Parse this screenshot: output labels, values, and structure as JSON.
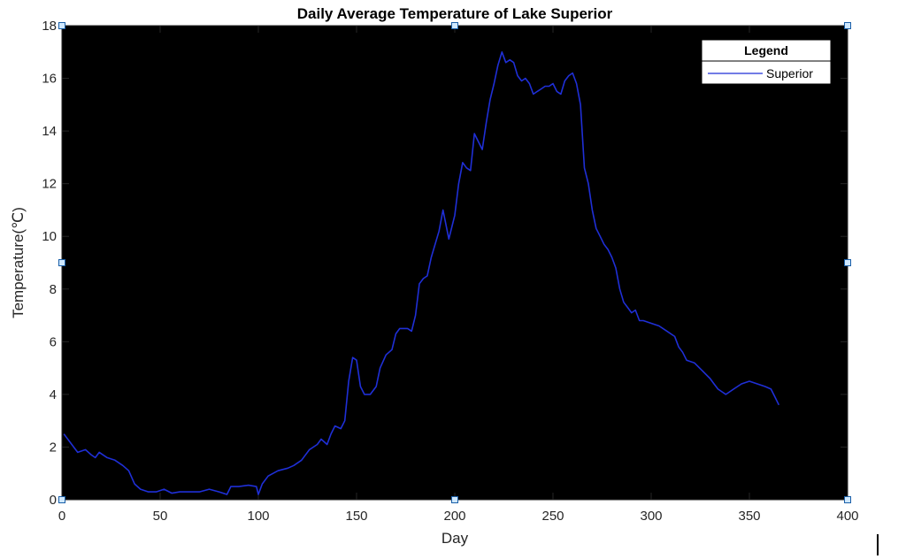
{
  "chart_data": {
    "type": "line",
    "title": "Daily Average Temperature of Lake Superior",
    "xlabel": "Day",
    "ylabel": "Temperature(℃)",
    "xlim": [
      0,
      400
    ],
    "ylim": [
      0,
      18
    ],
    "xticks": [
      0,
      50,
      100,
      150,
      200,
      250,
      300,
      350,
      400
    ],
    "yticks": [
      0,
      2,
      4,
      6,
      8,
      10,
      12,
      14,
      16,
      18
    ],
    "grid": false,
    "legend": {
      "title": "Legend",
      "placement": "top-right"
    },
    "series": [
      {
        "name": "Superior",
        "color": "#1f2fd6",
        "points": [
          [
            1,
            2.5
          ],
          [
            5,
            2.1
          ],
          [
            8,
            1.8
          ],
          [
            12,
            1.9
          ],
          [
            15,
            1.7
          ],
          [
            17,
            1.6
          ],
          [
            19,
            1.8
          ],
          [
            23,
            1.6
          ],
          [
            27,
            1.5
          ],
          [
            31,
            1.3
          ],
          [
            34,
            1.1
          ],
          [
            37,
            0.6
          ],
          [
            40,
            0.4
          ],
          [
            44,
            0.3
          ],
          [
            48,
            0.3
          ],
          [
            52,
            0.4
          ],
          [
            56,
            0.25
          ],
          [
            60,
            0.3
          ],
          [
            65,
            0.3
          ],
          [
            70,
            0.3
          ],
          [
            75,
            0.4
          ],
          [
            80,
            0.3
          ],
          [
            84,
            0.2
          ],
          [
            86,
            0.5
          ],
          [
            90,
            0.5
          ],
          [
            95,
            0.55
          ],
          [
            99,
            0.5
          ],
          [
            100,
            0.2
          ],
          [
            102,
            0.6
          ],
          [
            105,
            0.9
          ],
          [
            110,
            1.1
          ],
          [
            115,
            1.2
          ],
          [
            118,
            1.3
          ],
          [
            122,
            1.5
          ],
          [
            126,
            1.9
          ],
          [
            130,
            2.1
          ],
          [
            132,
            2.3
          ],
          [
            135,
            2.1
          ],
          [
            137,
            2.5
          ],
          [
            139,
            2.8
          ],
          [
            142,
            2.7
          ],
          [
            144,
            3.0
          ],
          [
            146,
            4.5
          ],
          [
            148,
            5.4
          ],
          [
            150,
            5.3
          ],
          [
            152,
            4.3
          ],
          [
            154,
            4.0
          ],
          [
            157,
            4.0
          ],
          [
            160,
            4.3
          ],
          [
            162,
            5.0
          ],
          [
            165,
            5.5
          ],
          [
            168,
            5.7
          ],
          [
            170,
            6.3
          ],
          [
            172,
            6.5
          ],
          [
            176,
            6.5
          ],
          [
            178,
            6.4
          ],
          [
            180,
            7.0
          ],
          [
            182,
            8.2
          ],
          [
            184,
            8.4
          ],
          [
            186,
            8.5
          ],
          [
            188,
            9.2
          ],
          [
            190,
            9.7
          ],
          [
            192,
            10.2
          ],
          [
            194,
            11.0
          ],
          [
            197,
            9.9
          ],
          [
            200,
            10.8
          ],
          [
            202,
            12.0
          ],
          [
            204,
            12.8
          ],
          [
            206,
            12.6
          ],
          [
            208,
            12.5
          ],
          [
            210,
            13.9
          ],
          [
            212,
            13.6
          ],
          [
            214,
            13.3
          ],
          [
            216,
            14.3
          ],
          [
            218,
            15.2
          ],
          [
            220,
            15.8
          ],
          [
            222,
            16.5
          ],
          [
            224,
            17.0
          ],
          [
            226,
            16.6
          ],
          [
            228,
            16.7
          ],
          [
            230,
            16.6
          ],
          [
            232,
            16.1
          ],
          [
            234,
            15.9
          ],
          [
            236,
            16.0
          ],
          [
            238,
            15.8
          ],
          [
            240,
            15.4
          ],
          [
            242,
            15.5
          ],
          [
            244,
            15.6
          ],
          [
            246,
            15.7
          ],
          [
            248,
            15.7
          ],
          [
            250,
            15.8
          ],
          [
            252,
            15.5
          ],
          [
            254,
            15.4
          ],
          [
            256,
            15.9
          ],
          [
            258,
            16.1
          ],
          [
            260,
            16.2
          ],
          [
            262,
            15.8
          ],
          [
            264,
            15.0
          ],
          [
            266,
            12.6
          ],
          [
            268,
            12.0
          ],
          [
            270,
            11.0
          ],
          [
            272,
            10.3
          ],
          [
            274,
            10.0
          ],
          [
            276,
            9.7
          ],
          [
            278,
            9.5
          ],
          [
            280,
            9.2
          ],
          [
            282,
            8.8
          ],
          [
            284,
            8.0
          ],
          [
            286,
            7.5
          ],
          [
            288,
            7.3
          ],
          [
            290,
            7.1
          ],
          [
            292,
            7.2
          ],
          [
            294,
            6.8
          ],
          [
            296,
            6.8
          ],
          [
            300,
            6.7
          ],
          [
            304,
            6.6
          ],
          [
            308,
            6.4
          ],
          [
            312,
            6.2
          ],
          [
            314,
            5.8
          ],
          [
            316,
            5.6
          ],
          [
            318,
            5.3
          ],
          [
            322,
            5.2
          ],
          [
            326,
            4.9
          ],
          [
            330,
            4.6
          ],
          [
            332,
            4.4
          ],
          [
            334,
            4.2
          ],
          [
            336,
            4.1
          ],
          [
            338,
            4.0
          ],
          [
            342,
            4.2
          ],
          [
            346,
            4.4
          ],
          [
            350,
            4.5
          ],
          [
            354,
            4.4
          ],
          [
            358,
            4.3
          ],
          [
            361,
            4.2
          ],
          [
            363,
            3.9
          ],
          [
            365,
            3.6
          ]
        ]
      }
    ]
  }
}
